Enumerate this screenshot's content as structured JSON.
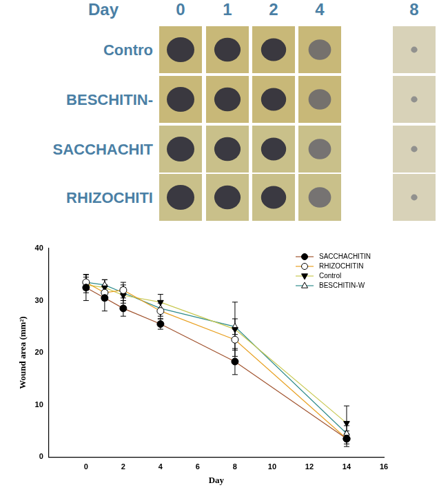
{
  "photo_panel": {
    "header": "Day",
    "days": [
      0,
      1,
      2,
      4,
      8
    ],
    "rows": [
      "Contro",
      "BESCHITIN-",
      "SACCHACHIT",
      "RHIZOCHITI"
    ]
  },
  "chart_data": {
    "type": "line",
    "x_label": "Day",
    "y_label": "Wound area (mm²)",
    "x": [
      0,
      1,
      2,
      4,
      8,
      14
    ],
    "series": [
      {
        "name": "SACCHACHITIN",
        "color": "#a0522d",
        "marker": "filled_circle",
        "values": [
          32.5,
          30.5,
          28.5,
          25.5,
          18.3,
          3.5
        ],
        "errors": [
          2.5,
          2.5,
          1.5,
          1.0,
          2.5,
          1.0
        ]
      },
      {
        "name": "RHIZOCHITIN",
        "color": "#e8a020",
        "marker": "open_circle",
        "values": [
          33.5,
          31.5,
          32.0,
          28.0,
          22.5,
          3.5
        ],
        "errors": [
          1.5,
          1.5,
          1.5,
          1.5,
          2.0,
          1.5
        ]
      },
      {
        "name": "Control",
        "color": "#c8c850",
        "marker": "filled_triangle_down",
        "values": [
          33.0,
          32.5,
          31.0,
          29.7,
          24.5,
          6.5
        ],
        "errors": [
          1.5,
          1.5,
          1.5,
          1.5,
          5.2,
          3.3
        ]
      },
      {
        "name": "BESCHITIN-W",
        "color": "#2e8b8b",
        "marker": "open_triangle_up",
        "values": [
          33.5,
          33.0,
          31.5,
          28.5,
          25.0,
          4.5
        ],
        "errors": [
          1.5,
          1.0,
          1.5,
          1.5,
          1.5,
          1.5
        ]
      }
    ],
    "xlim": [
      -2,
      16
    ],
    "xticks": [
      0,
      2,
      4,
      6,
      8,
      10,
      12,
      14,
      16
    ],
    "ylim": [
      0,
      40
    ],
    "yticks": [
      0,
      10,
      20,
      30,
      40
    ],
    "grid": false,
    "legend": "top-right"
  }
}
